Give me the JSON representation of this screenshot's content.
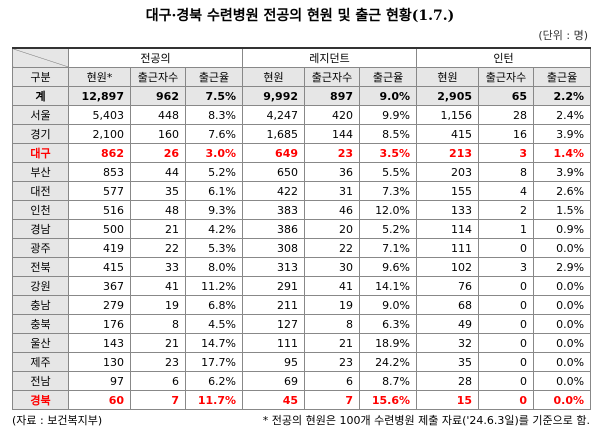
{
  "title": "대구·경북 수련병원 전공의 현원 및 출근 현황(1.7.)",
  "unit": "(단위 : 명)",
  "table": {
    "groups": [
      "전공의",
      "레지던트",
      "인턴"
    ],
    "columns": [
      "구분",
      "현원*",
      "출근자수",
      "출근율",
      "현원",
      "출근자수",
      "출근율",
      "현원",
      "출근자수",
      "출근율"
    ],
    "rows": [
      {
        "cells": [
          "계",
          "12,897",
          "962",
          "7.5%",
          "9,992",
          "897",
          "9.0%",
          "2,905",
          "65",
          "2.2%"
        ]
      },
      {
        "cells": [
          "서울",
          "5,403",
          "448",
          "8.3%",
          "4,247",
          "420",
          "9.9%",
          "1,156",
          "28",
          "2.4%"
        ]
      },
      {
        "cells": [
          "경기",
          "2,100",
          "160",
          "7.6%",
          "1,685",
          "144",
          "8.5%",
          "415",
          "16",
          "3.9%"
        ]
      },
      {
        "cells": [
          "대구",
          "862",
          "26",
          "3.0%",
          "649",
          "23",
          "3.5%",
          "213",
          "3",
          "1.4%"
        ],
        "color": "#ff0000"
      },
      {
        "cells": [
          "부산",
          "853",
          "44",
          "5.2%",
          "650",
          "36",
          "5.5%",
          "203",
          "8",
          "3.9%"
        ]
      },
      {
        "cells": [
          "대전",
          "577",
          "35",
          "6.1%",
          "422",
          "31",
          "7.3%",
          "155",
          "4",
          "2.6%"
        ]
      },
      {
        "cells": [
          "인천",
          "516",
          "48",
          "9.3%",
          "383",
          "46",
          "12.0%",
          "133",
          "2",
          "1.5%"
        ]
      },
      {
        "cells": [
          "경남",
          "500",
          "21",
          "4.2%",
          "386",
          "20",
          "5.2%",
          "114",
          "1",
          "0.9%"
        ]
      },
      {
        "cells": [
          "광주",
          "419",
          "22",
          "5.3%",
          "308",
          "22",
          "7.1%",
          "111",
          "0",
          "0.0%"
        ]
      },
      {
        "cells": [
          "전북",
          "415",
          "33",
          "8.0%",
          "313",
          "30",
          "9.6%",
          "102",
          "3",
          "2.9%"
        ]
      },
      {
        "cells": [
          "강원",
          "367",
          "41",
          "11.2%",
          "291",
          "41",
          "14.1%",
          "76",
          "0",
          "0.0%"
        ]
      },
      {
        "cells": [
          "충남",
          "279",
          "19",
          "6.8%",
          "211",
          "19",
          "9.0%",
          "68",
          "0",
          "0.0%"
        ]
      },
      {
        "cells": [
          "충북",
          "176",
          "8",
          "4.5%",
          "127",
          "8",
          "6.3%",
          "49",
          "0",
          "0.0%"
        ]
      },
      {
        "cells": [
          "울산",
          "143",
          "21",
          "14.7%",
          "111",
          "21",
          "18.9%",
          "32",
          "0",
          "0.0%"
        ]
      },
      {
        "cells": [
          "제주",
          "130",
          "23",
          "17.7%",
          "95",
          "23",
          "24.2%",
          "35",
          "0",
          "0.0%"
        ]
      },
      {
        "cells": [
          "전남",
          "97",
          "6",
          "6.2%",
          "69",
          "6",
          "8.7%",
          "28",
          "0",
          "0.0%"
        ]
      },
      {
        "cells": [
          "경북",
          "60",
          "7",
          "11.7%",
          "45",
          "7",
          "15.6%",
          "15",
          "0",
          "0.0%"
        ],
        "color": "#ff0000"
      }
    ]
  },
  "footer": {
    "source": "(자료 : 보건복지부)",
    "note": "* 전공의 현원은 100개 수련병원 제출 자료('24.6.3일)를 기준으로 함."
  }
}
